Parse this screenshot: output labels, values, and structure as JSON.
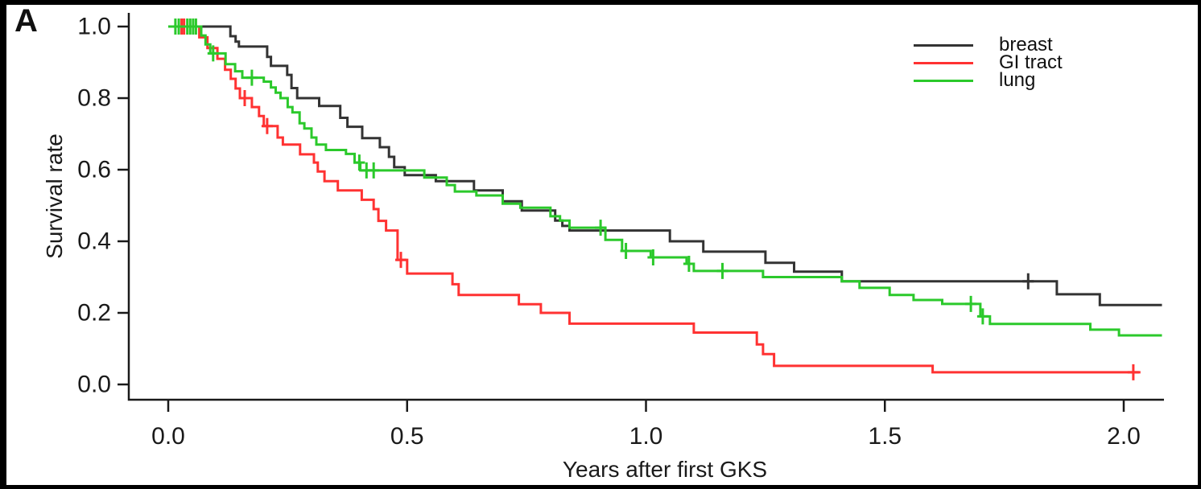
{
  "panel_label": "A",
  "colors": {
    "frame": "#000000",
    "background": "#ffffff",
    "axis": "#1a1a1a",
    "text": "#1a1a1a",
    "breast": "#333333",
    "gi_tract": "#ff3232",
    "lung": "#2bc92b"
  },
  "chart_data": {
    "type": "line",
    "subtype": "kaplan-meier-step",
    "title": "",
    "xlabel": "Years after first GKS",
    "ylabel": "Survival rate",
    "xlim": [
      0,
      2.08
    ],
    "ylim": [
      0.0,
      1.0
    ],
    "grid": false,
    "legend_position": "top-right",
    "x_ticks": [
      0.0,
      0.5,
      1.0,
      1.5,
      2.0
    ],
    "x_tick_labels": [
      "0.0",
      "0.5",
      "1.0",
      "1.5",
      "2.0"
    ],
    "y_ticks": [
      0.0,
      0.2,
      0.4,
      0.6,
      0.8,
      1.0
    ],
    "y_tick_labels": [
      "0.0",
      "0.2",
      "0.4",
      "0.6",
      "0.8",
      "1.0"
    ],
    "series": [
      {
        "name": "breast",
        "color": "#333333",
        "x_end": 2.08,
        "points": [
          [
            0.0,
            1.0
          ],
          [
            0.13,
            0.973
          ],
          [
            0.141,
            0.958
          ],
          [
            0.148,
            0.944
          ],
          [
            0.207,
            0.915
          ],
          [
            0.215,
            0.89
          ],
          [
            0.249,
            0.865
          ],
          [
            0.258,
            0.828
          ],
          [
            0.27,
            0.8
          ],
          [
            0.316,
            0.778
          ],
          [
            0.36,
            0.745
          ],
          [
            0.375,
            0.72
          ],
          [
            0.406,
            0.688
          ],
          [
            0.443,
            0.663
          ],
          [
            0.462,
            0.636
          ],
          [
            0.473,
            0.607
          ],
          [
            0.495,
            0.585
          ],
          [
            0.56,
            0.568
          ],
          [
            0.64,
            0.542
          ],
          [
            0.7,
            0.512
          ],
          [
            0.74,
            0.486
          ],
          [
            0.81,
            0.458
          ],
          [
            0.825,
            0.443
          ],
          [
            0.84,
            0.43
          ],
          [
            1.05,
            0.4
          ],
          [
            1.12,
            0.371
          ],
          [
            1.25,
            0.34
          ],
          [
            1.31,
            0.315
          ],
          [
            1.41,
            0.288
          ],
          [
            1.86,
            0.252
          ],
          [
            1.95,
            0.222
          ]
        ],
        "censor_x": [
          1.8
        ]
      },
      {
        "name": "GI tract",
        "color": "#ff3232",
        "x_end": 2.035,
        "points": [
          [
            0.0,
            1.0
          ],
          [
            0.065,
            0.97
          ],
          [
            0.082,
            0.94
          ],
          [
            0.103,
            0.91
          ],
          [
            0.119,
            0.879
          ],
          [
            0.131,
            0.854
          ],
          [
            0.141,
            0.827
          ],
          [
            0.15,
            0.8
          ],
          [
            0.175,
            0.775
          ],
          [
            0.19,
            0.75
          ],
          [
            0.2,
            0.722
          ],
          [
            0.229,
            0.69
          ],
          [
            0.24,
            0.67
          ],
          [
            0.276,
            0.643
          ],
          [
            0.305,
            0.62
          ],
          [
            0.313,
            0.595
          ],
          [
            0.327,
            0.568
          ],
          [
            0.355,
            0.542
          ],
          [
            0.405,
            0.516
          ],
          [
            0.43,
            0.49
          ],
          [
            0.44,
            0.457
          ],
          [
            0.456,
            0.43
          ],
          [
            0.48,
            0.348
          ],
          [
            0.5,
            0.31
          ],
          [
            0.595,
            0.28
          ],
          [
            0.608,
            0.25
          ],
          [
            0.734,
            0.224
          ],
          [
            0.78,
            0.2
          ],
          [
            0.84,
            0.17
          ],
          [
            1.1,
            0.145
          ],
          [
            1.232,
            0.112
          ],
          [
            1.245,
            0.085
          ],
          [
            1.268,
            0.052
          ],
          [
            1.6,
            0.034
          ]
        ],
        "censor_x": [
          0.028,
          0.033,
          0.16,
          0.207,
          0.487,
          2.02
        ]
      },
      {
        "name": "lung",
        "color": "#2bc92b",
        "x_end": 2.08,
        "points": [
          [
            0.0,
            1.0
          ],
          [
            0.069,
            0.975
          ],
          [
            0.078,
            0.95
          ],
          [
            0.088,
            0.925
          ],
          [
            0.12,
            0.895
          ],
          [
            0.14,
            0.875
          ],
          [
            0.155,
            0.857
          ],
          [
            0.2,
            0.846
          ],
          [
            0.215,
            0.83
          ],
          [
            0.225,
            0.815
          ],
          [
            0.235,
            0.8
          ],
          [
            0.25,
            0.775
          ],
          [
            0.26,
            0.76
          ],
          [
            0.275,
            0.73
          ],
          [
            0.285,
            0.715
          ],
          [
            0.3,
            0.69
          ],
          [
            0.31,
            0.67
          ],
          [
            0.33,
            0.655
          ],
          [
            0.372,
            0.644
          ],
          [
            0.39,
            0.62
          ],
          [
            0.402,
            0.598
          ],
          [
            0.536,
            0.578
          ],
          [
            0.583,
            0.557
          ],
          [
            0.6,
            0.539
          ],
          [
            0.645,
            0.528
          ],
          [
            0.7,
            0.505
          ],
          [
            0.737,
            0.494
          ],
          [
            0.8,
            0.47
          ],
          [
            0.82,
            0.458
          ],
          [
            0.84,
            0.438
          ],
          [
            0.915,
            0.404
          ],
          [
            0.95,
            0.373
          ],
          [
            1.01,
            0.355
          ],
          [
            1.085,
            0.337
          ],
          [
            1.1,
            0.317
          ],
          [
            1.245,
            0.3
          ],
          [
            1.41,
            0.288
          ],
          [
            1.447,
            0.27
          ],
          [
            1.51,
            0.25
          ],
          [
            1.56,
            0.236
          ],
          [
            1.62,
            0.225
          ],
          [
            1.7,
            0.19
          ],
          [
            1.72,
            0.169
          ],
          [
            1.93,
            0.153
          ],
          [
            1.99,
            0.137
          ]
        ],
        "censor_x": [
          0.015,
          0.022,
          0.04,
          0.046,
          0.052,
          0.058,
          0.094,
          0.175,
          0.4,
          0.415,
          0.43,
          0.905,
          0.958,
          1.015,
          1.09,
          1.16,
          1.68,
          1.705
        ]
      }
    ]
  }
}
